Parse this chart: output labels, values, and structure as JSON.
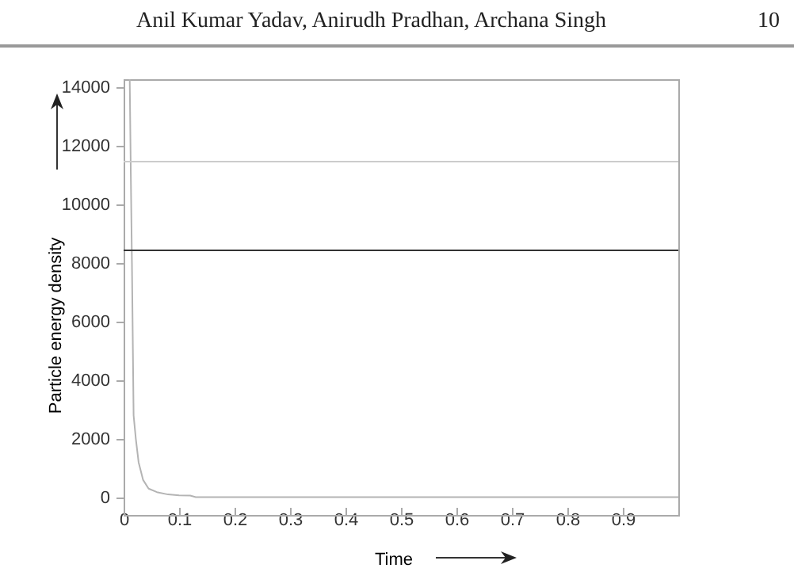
{
  "chart_data": {
    "type": "line",
    "annotations": [
      "Anil Kumar Yadav, Anirudh Pradhan, Archana Singh",
      "10"
    ],
    "xlabel": "Time",
    "ylabel": "Particle energy density",
    "x": [
      0.011,
      0.013,
      0.015,
      0.018,
      0.022,
      0.027,
      0.035,
      0.045,
      0.06,
      0.08,
      0.1,
      0.12,
      0.13,
      0.3,
      0.6,
      1.0
    ],
    "series": [
      {
        "color": "#b4b4b4",
        "values": [
          14270,
          11000,
          8000,
          2800,
          2000,
          1200,
          600,
          300,
          180,
          100,
          70,
          60,
          10,
          10,
          10,
          10
        ]
      }
    ],
    "xlim": [
      0,
      1
    ],
    "xticks": [
      0,
      0.1,
      0.2,
      0.3,
      0.4,
      0.5,
      0.6,
      0.7,
      0.8,
      0.9
    ],
    "ylim": [
      -600,
      14270
    ],
    "yticks": [
      0,
      2000,
      4000,
      6000,
      8000,
      10000,
      12000,
      14000
    ],
    "ref_lines": [
      {
        "axis": "y",
        "value": 8430,
        "color": "#333333"
      },
      {
        "axis": "y",
        "value": 11460,
        "color": "#cccccc"
      }
    ],
    "grid": false,
    "marker": "none",
    "line_style": "solid"
  }
}
